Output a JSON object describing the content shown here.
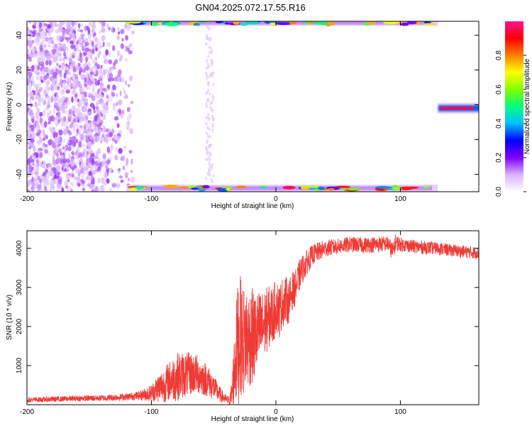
{
  "figure": {
    "title": "GN04.2025.072.17.55.R16"
  },
  "colors": {
    "snr_line": "#ef3b36",
    "axis": "#000000",
    "background": "#ffffff"
  },
  "chart_data": [
    {
      "type": "heatmap",
      "xlabel": "Height of straight line (km)",
      "ylabel": "Frequency (Hz)",
      "xlim": [
        -200,
        163
      ],
      "ylim": [
        -50,
        48
      ],
      "x_ticks": [
        -200,
        -100,
        0,
        100
      ],
      "y_ticks": [
        -40,
        -20,
        0,
        20,
        40
      ],
      "colorbar": {
        "label": "Normalized spectral amplitude",
        "range": [
          0,
          1
        ],
        "ticks": [
          "0.0",
          "0.2",
          "0.4",
          "0.6",
          "0.8"
        ],
        "colormap": [
          "#ffffff",
          "#d9b3ff",
          "#8000ff",
          "#0000ff",
          "#00bfff",
          "#00ff80",
          "#80ff00",
          "#ffff00",
          "#ff8000",
          "#ff0000",
          "#ff1493"
        ]
      },
      "features": [
        {
          "name": "scattered",
          "x_range": [
            -200,
            -110
          ],
          "freq_range": [
            -50,
            48
          ],
          "amplitude": 0.1
        },
        {
          "name": "faint column",
          "x_range": [
            -56,
            -50
          ],
          "freq_range": [
            -45,
            48
          ],
          "amplitude": 0.03
        },
        {
          "name": "upper edge",
          "x_range": [
            -115,
            130
          ],
          "freq": 47,
          "amplitude": 0.6
        },
        {
          "name": "lower edge",
          "x_range": [
            -120,
            130
          ],
          "freq": -48,
          "amplitude": 0.8
        },
        {
          "name": "signal line",
          "x_range": [
            130,
            163
          ],
          "freq": -2,
          "amplitude": 0.95
        }
      ],
      "grid": false
    },
    {
      "type": "line",
      "xlabel": "Height of straight line (km)",
      "ylabel": "SNR (10 * v/v)",
      "xlim": [
        -200,
        163
      ],
      "ylim": [
        0,
        4450
      ],
      "x_ticks": [
        -200,
        -100,
        0,
        100
      ],
      "y_ticks": [
        1000,
        2000,
        3000,
        4000
      ],
      "series": [
        {
          "color": "#ef3b36",
          "x": [
            -200,
            -180,
            -160,
            -140,
            -120,
            -110,
            -100,
            -95,
            -90,
            -85,
            -80,
            -75,
            -70,
            -65,
            -60,
            -55,
            -50,
            -45,
            -40,
            -37,
            -35,
            -33,
            -31,
            -30,
            -28,
            -26,
            -24,
            -22,
            -20,
            -18,
            -15,
            -12,
            -10,
            -8,
            -5,
            -2,
            0,
            3,
            5,
            8,
            10,
            13,
            15,
            18,
            20,
            25,
            30,
            40,
            50,
            60,
            70,
            80,
            90,
            94,
            96,
            100,
            110,
            120,
            130,
            140,
            150,
            163
          ],
          "y": [
            120,
            140,
            160,
            170,
            200,
            230,
            300,
            420,
            500,
            620,
            700,
            760,
            780,
            800,
            720,
            620,
            450,
            260,
            130,
            100,
            350,
            1050,
            1500,
            1700,
            1750,
            1600,
            1750,
            1650,
            1800,
            1700,
            1850,
            1950,
            2000,
            2150,
            2250,
            2300,
            2550,
            2400,
            2600,
            2700,
            2600,
            2900,
            2950,
            3200,
            3400,
            3650,
            3850,
            4000,
            4050,
            4100,
            4080,
            4100,
            4120,
            3900,
            4150,
            4100,
            4050,
            4020,
            4000,
            3950,
            3920,
            3880
          ],
          "noise_amplitude": [
            60,
            70,
            70,
            80,
            90,
            110,
            220,
            350,
            450,
            520,
            620,
            600,
            560,
            520,
            480,
            420,
            320,
            200,
            120,
            120,
            500,
            1100,
            1500,
            1700,
            1500,
            1400,
            1400,
            1300,
            1300,
            1200,
            1050,
            1000,
            900,
            850,
            800,
            750,
            700,
            700,
            650,
            600,
            550,
            500,
            450,
            420,
            380,
            320,
            260,
            220,
            200,
            200,
            200,
            200,
            200,
            250,
            220,
            180,
            170,
            170,
            160,
            160,
            160,
            160
          ]
        }
      ],
      "grid": false
    }
  ]
}
